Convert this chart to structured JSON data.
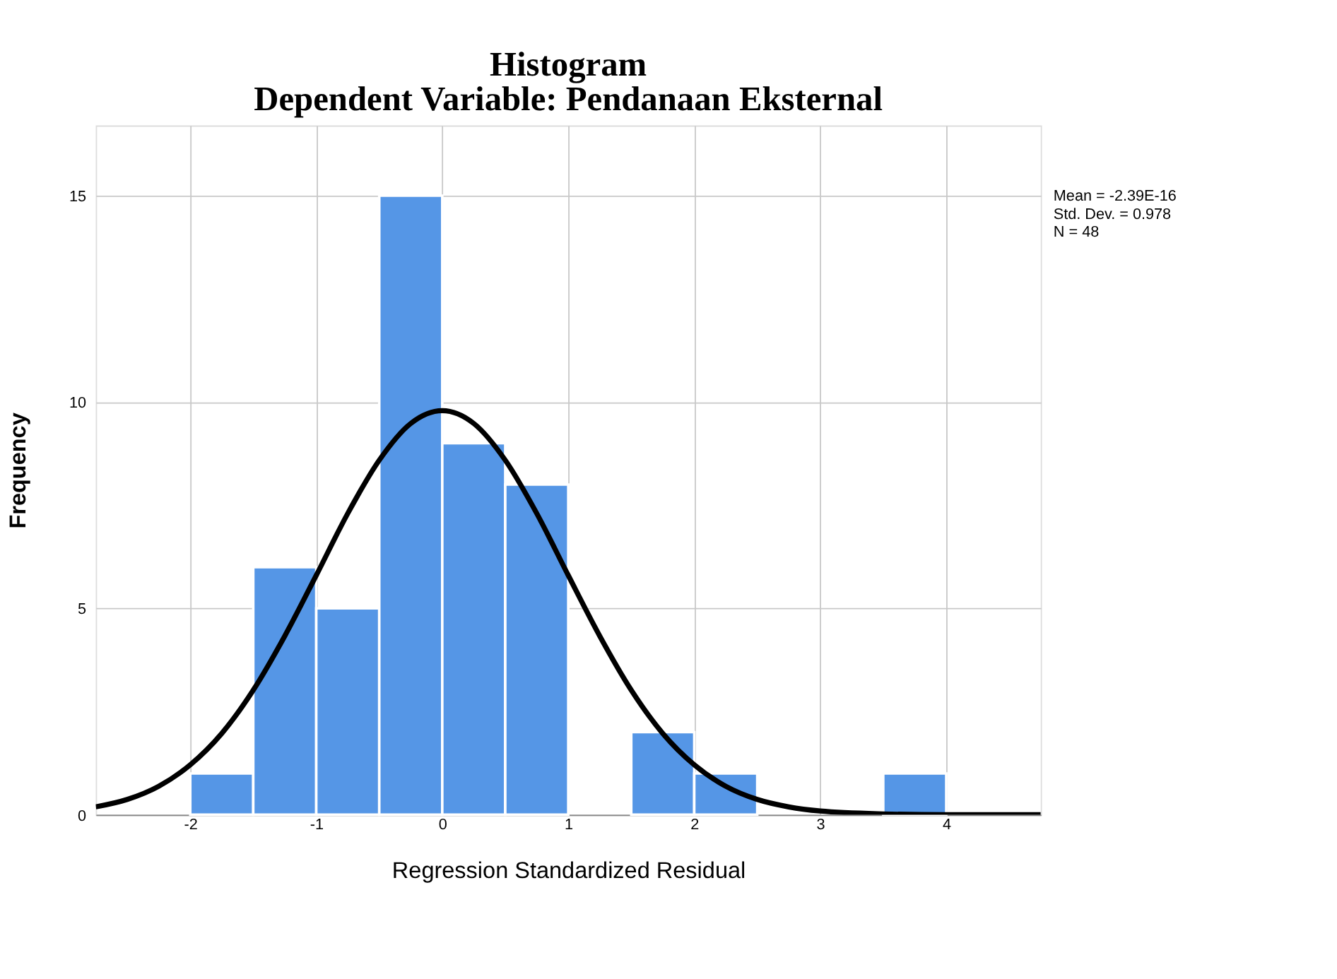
{
  "chart_data": {
    "type": "histogram",
    "title": "Histogram",
    "subtitle": "Dependent Variable: Pendanaan Eksternal",
    "xlabel": "Regression Standardized Residual",
    "ylabel": "Frequency",
    "bins": [
      -2,
      -1.5,
      -1,
      -0.5,
      0,
      0.5,
      1,
      1.5,
      2,
      2.5,
      3,
      3.5,
      4
    ],
    "values": [
      1,
      6,
      5,
      15,
      9,
      8,
      0,
      2,
      1,
      0,
      0,
      1
    ],
    "color": "#5596e6",
    "series": [
      {
        "type": "line",
        "color": "#000000",
        "x": [
          -2.75,
          -2.5,
          -2.25,
          -2,
          -1.75,
          -1.5,
          -1.25,
          -1,
          -0.75,
          -0.5,
          -0.25,
          0,
          0.25,
          0.5,
          0.75,
          1,
          1.25,
          1.5,
          1.75,
          2,
          2.25,
          2.5,
          2.75,
          3,
          3.5,
          4,
          4.75
        ],
        "values": [
          0.19,
          0.37,
          0.69,
          1.21,
          1.97,
          3.02,
          4.33,
          5.8,
          7.3,
          8.59,
          9.48,
          9.79,
          9.48,
          8.59,
          7.3,
          5.8,
          4.33,
          3.02,
          1.97,
          1.21,
          0.69,
          0.37,
          0.19,
          0.09,
          0.02,
          0,
          0
        ]
      }
    ],
    "xlim": [
      -2.75,
      4.75
    ],
    "ylim": [
      0,
      16.7
    ],
    "xticks": [
      -2,
      -1,
      0,
      1,
      2,
      3,
      4
    ],
    "yticks": [
      0,
      5,
      10,
      15
    ],
    "grid": true,
    "annotations": [
      "Mean = -2.39E-16",
      "Std. Dev. = 0.978",
      "N = 48"
    ]
  }
}
